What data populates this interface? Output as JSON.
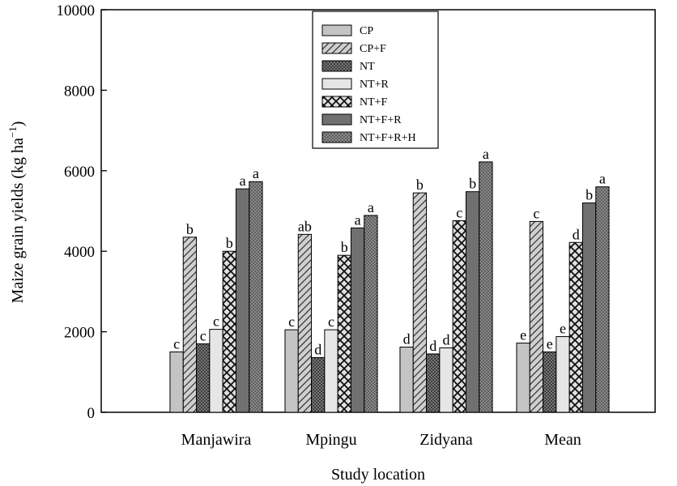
{
  "chart_data": {
    "type": "bar",
    "title": "",
    "xlabel": "Study location",
    "ylabel": "Maize grain yields (kg ha",
    "ylabel_sup": "−1",
    "ylabel_close": ")",
    "ylim": [
      0,
      10000
    ],
    "yticks": [
      0,
      2000,
      4000,
      6000,
      8000,
      10000
    ],
    "categories": [
      "Manjawira",
      "Mpingu",
      "Zidyana",
      "Mean"
    ],
    "legend_position": "top-center",
    "series": [
      {
        "name": "CP",
        "values": [
          1500,
          2050,
          1620,
          1720
        ],
        "letters": [
          "c",
          "c",
          "d",
          "e"
        ],
        "color": "#c4c4c4",
        "pattern": "solid-light"
      },
      {
        "name": "CP+F",
        "values": [
          4350,
          4420,
          5450,
          4740
        ],
        "letters": [
          "b",
          "ab",
          "b",
          "c"
        ],
        "color": "#c4c4c4",
        "pattern": "diagonal"
      },
      {
        "name": "NT",
        "values": [
          1700,
          1360,
          1450,
          1500
        ],
        "letters": [
          "c",
          "d",
          "d",
          "e"
        ],
        "color": "#555555",
        "pattern": "dots-dark"
      },
      {
        "name": "NT+R",
        "values": [
          2060,
          2050,
          1600,
          1880
        ],
        "letters": [
          "c",
          "c",
          "d",
          "e"
        ],
        "color": "#e6e6e6",
        "pattern": "solid-lighter"
      },
      {
        "name": "NT+F",
        "values": [
          4000,
          3900,
          4760,
          4220
        ],
        "letters": [
          "b",
          "b",
          "c",
          "d"
        ],
        "color": "#d0d0d0",
        "pattern": "crosshatch"
      },
      {
        "name": "NT+F+R",
        "values": [
          5550,
          4580,
          5480,
          5200
        ],
        "letters": [
          "a",
          "a",
          "b",
          "b"
        ],
        "color": "#707070",
        "pattern": "solid-dark"
      },
      {
        "name": "NT+F+R+H",
        "values": [
          5730,
          4890,
          6220,
          5600
        ],
        "letters": [
          "a",
          "a",
          "a",
          "a"
        ],
        "color": "#8a8a8a",
        "pattern": "dots"
      }
    ]
  }
}
